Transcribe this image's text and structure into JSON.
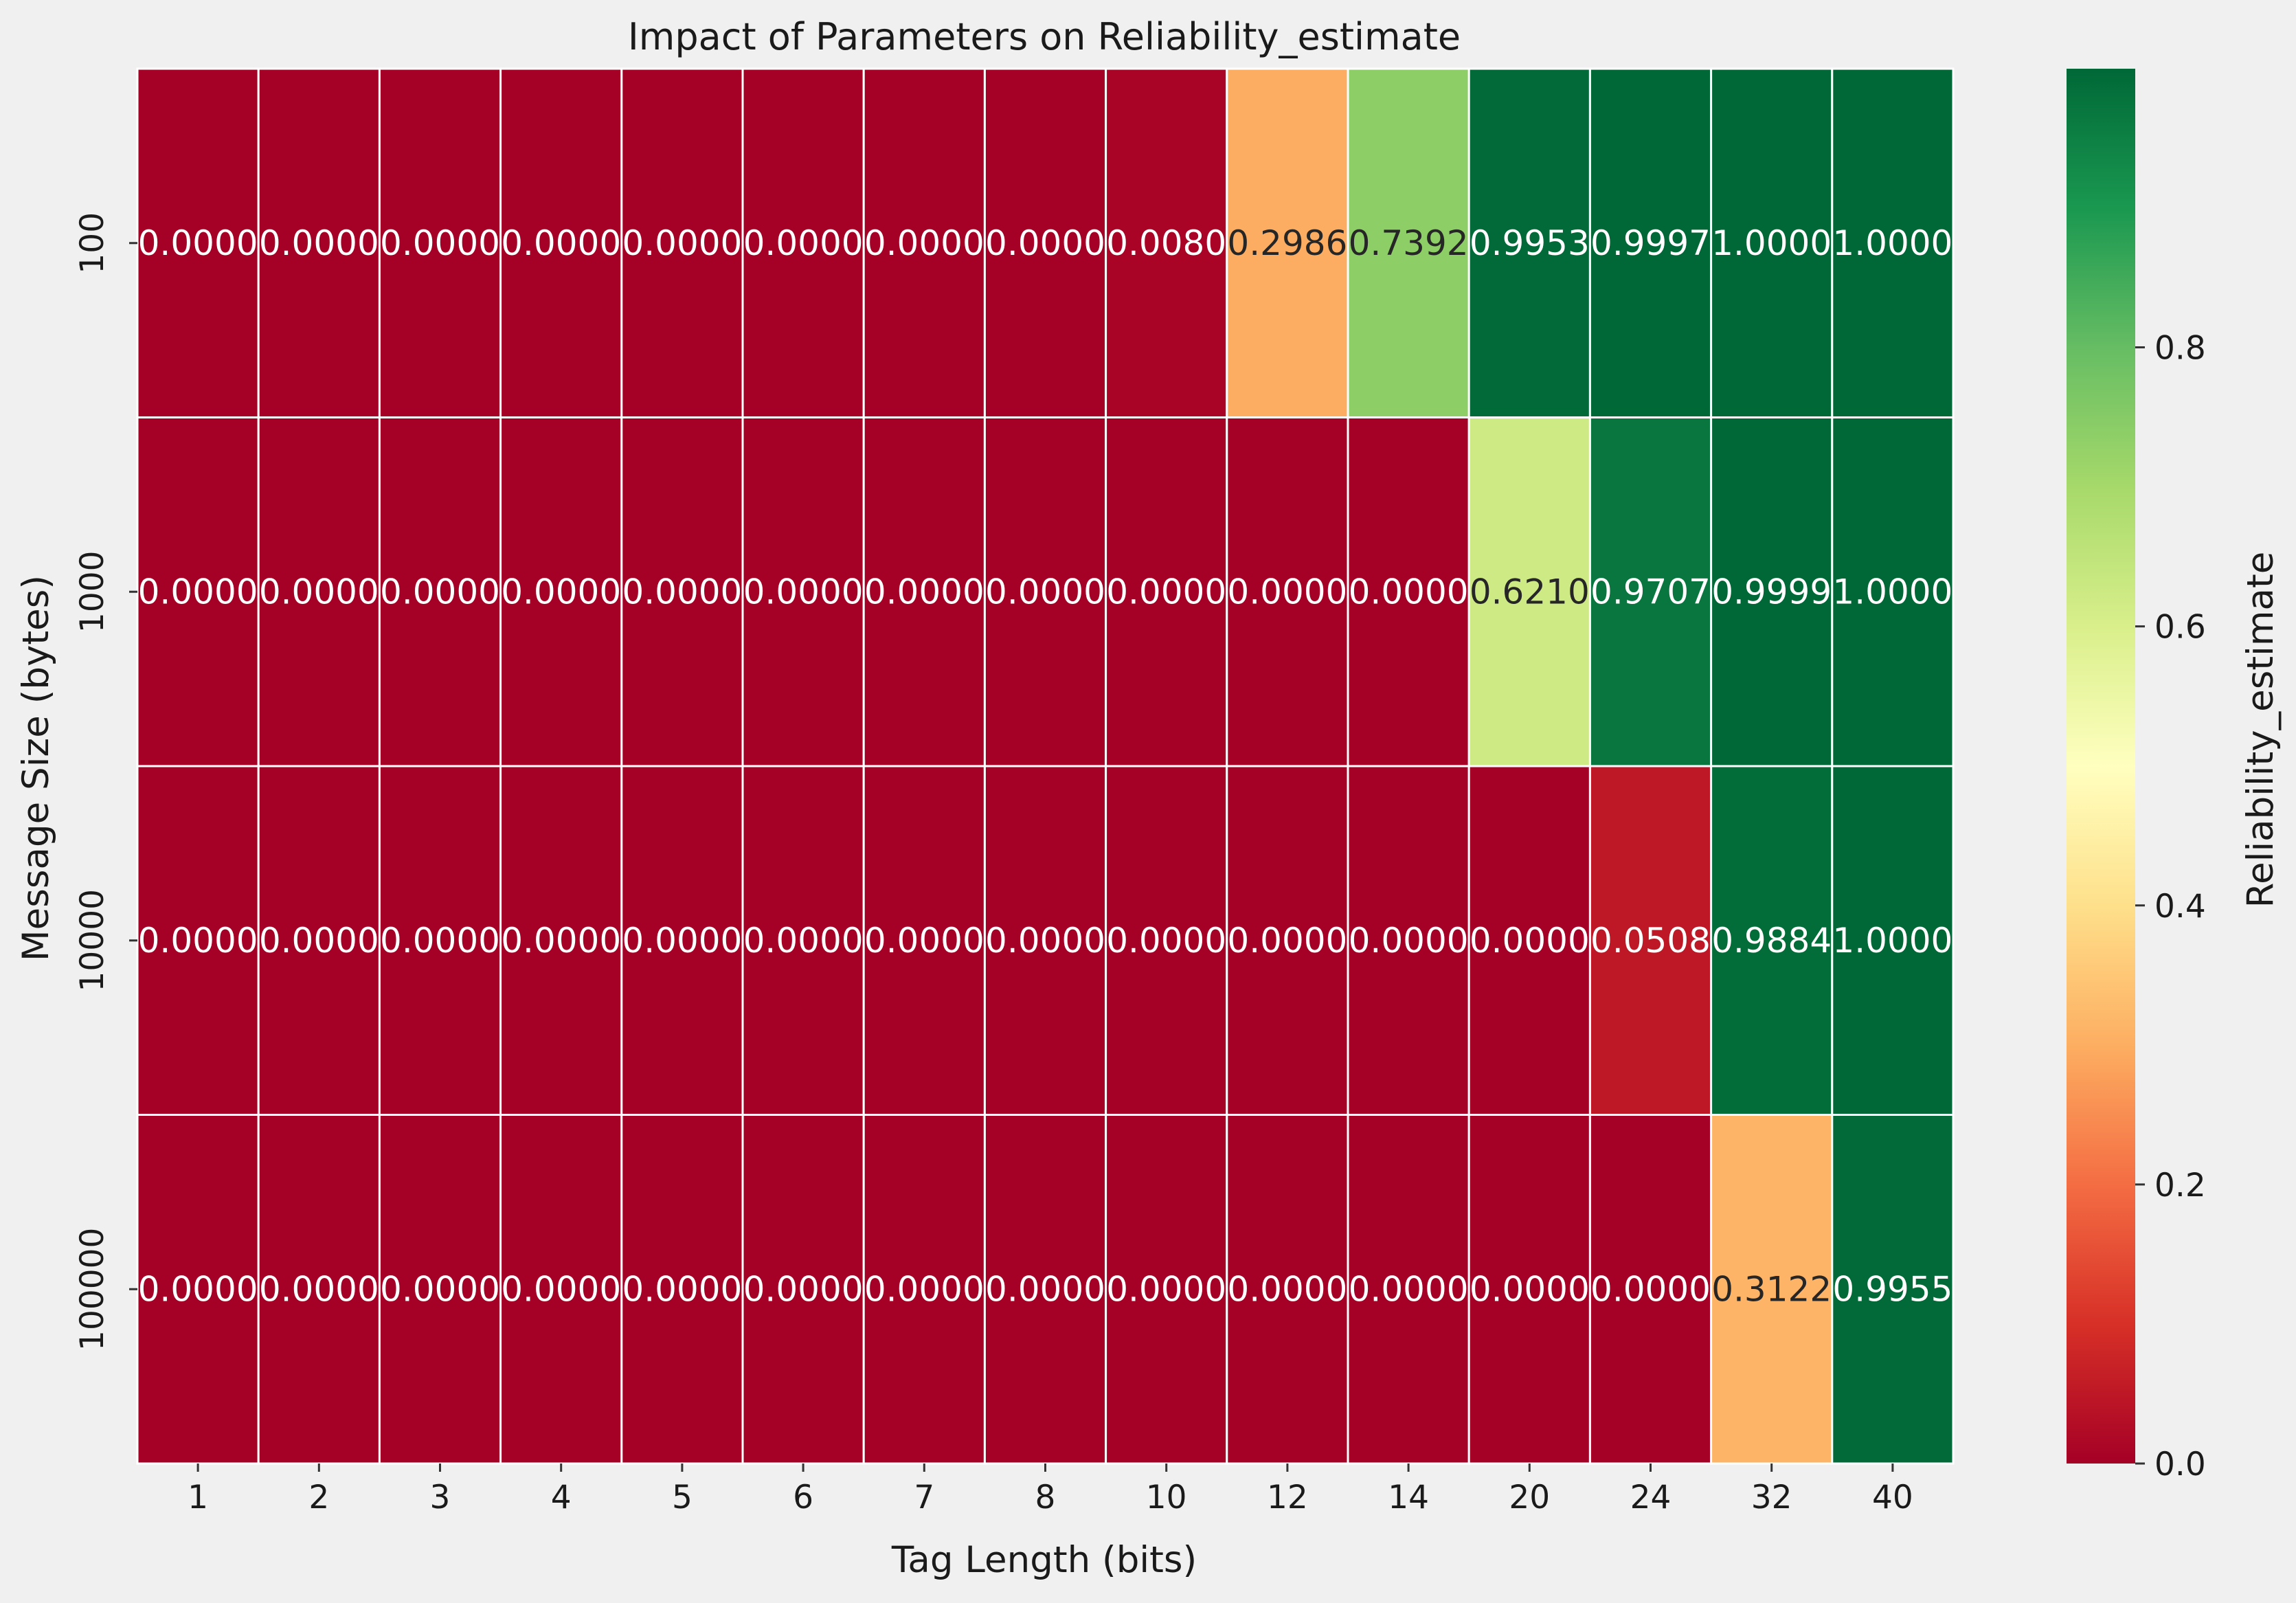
{
  "chart_data": {
    "type": "heatmap",
    "title": "Impact of Parameters on Reliability_estimate",
    "xlabel": "Tag Length (bits)",
    "ylabel": "Message Size (bytes)",
    "x_categories": [
      "1",
      "2",
      "3",
      "4",
      "5",
      "6",
      "7",
      "8",
      "10",
      "12",
      "14",
      "20",
      "24",
      "32",
      "40"
    ],
    "y_categories": [
      "100",
      "1000",
      "10000",
      "100000"
    ],
    "values": [
      [
        0.0,
        0.0,
        0.0,
        0.0,
        0.0,
        0.0,
        0.0,
        0.0,
        0.008,
        0.2986,
        0.7392,
        0.9953,
        0.9997,
        1.0,
        1.0
      ],
      [
        0.0,
        0.0,
        0.0,
        0.0,
        0.0,
        0.0,
        0.0,
        0.0,
        0.0,
        0.0,
        0.0,
        0.621,
        0.9707,
        0.9999,
        1.0
      ],
      [
        0.0,
        0.0,
        0.0,
        0.0,
        0.0,
        0.0,
        0.0,
        0.0,
        0.0,
        0.0,
        0.0,
        0.0,
        0.0508,
        0.9884,
        1.0
      ],
      [
        0.0,
        0.0,
        0.0,
        0.0,
        0.0,
        0.0,
        0.0,
        0.0,
        0.0,
        0.0,
        0.0,
        0.0,
        0.0,
        0.3122,
        0.9955
      ]
    ],
    "annotations": [
      [
        "0.0000",
        "0.0000",
        "0.0000",
        "0.0000",
        "0.0000",
        "0.0000",
        "0.0000",
        "0.0000",
        "0.0080",
        "0.2986",
        "0.7392",
        "0.9953",
        "0.9997",
        "1.0000",
        "1.0000"
      ],
      [
        "0.0000",
        "0.0000",
        "0.0000",
        "0.0000",
        "0.0000",
        "0.0000",
        "0.0000",
        "0.0000",
        "0.0000",
        "0.0000",
        "0.0000",
        "0.6210",
        "0.9707",
        "0.9999",
        "1.0000"
      ],
      [
        "0.0000",
        "0.0000",
        "0.0000",
        "0.0000",
        "0.0000",
        "0.0000",
        "0.0000",
        "0.0000",
        "0.0000",
        "0.0000",
        "0.0000",
        "0.0000",
        "0.0508",
        "0.9884",
        "1.0000"
      ],
      [
        "0.0000",
        "0.0000",
        "0.0000",
        "0.0000",
        "0.0000",
        "0.0000",
        "0.0000",
        "0.0000",
        "0.0000",
        "0.0000",
        "0.0000",
        "0.0000",
        "0.0000",
        "0.3122",
        "0.9955"
      ]
    ],
    "colormap": "RdYlGn",
    "colorbar": {
      "label": "Reliability_estimate",
      "range": [
        0.0,
        0.9997
      ],
      "ticks": [
        0.0,
        0.2,
        0.4,
        0.6,
        0.8
      ],
      "tick_labels": [
        "0.0",
        "0.2",
        "0.4",
        "0.6",
        "0.8"
      ]
    },
    "grid": true,
    "background_color": "#f0f0f0",
    "cell_border_color": "#ffffff"
  }
}
